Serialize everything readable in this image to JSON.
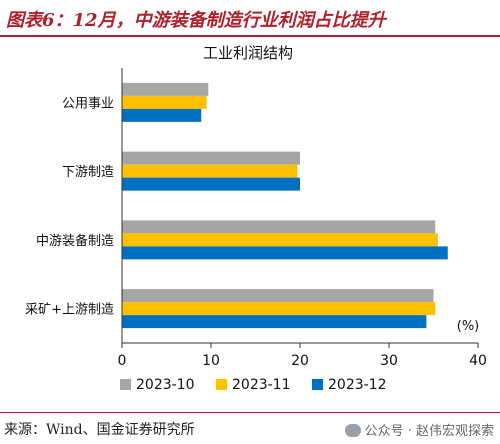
{
  "header": {
    "title": "图表6：12月，中游装备制造行业利润占比提升"
  },
  "footer": {
    "source": "来源：Wind、国金证券研究所",
    "watermark": "公众号 · 赵伟宏观探索"
  },
  "colors": {
    "brand_red": "#b0202a",
    "series": [
      "#a6a6a6",
      "#ffc000",
      "#0070c0"
    ]
  },
  "chart_data": {
    "type": "bar",
    "orientation": "horizontal",
    "title": "工业利润结构",
    "unit_label": "(%)",
    "categories": [
      "公用事业",
      "下游制造",
      "中游装备制造",
      "采矿+上游制造"
    ],
    "series": [
      {
        "name": "2023-10",
        "values": [
          9.7,
          20.0,
          35.2,
          35.0
        ]
      },
      {
        "name": "2023-11",
        "values": [
          9.5,
          19.7,
          35.5,
          35.2
        ]
      },
      {
        "name": "2023-12",
        "values": [
          8.9,
          20.0,
          36.6,
          34.2
        ]
      }
    ],
    "xlim": [
      0,
      40
    ],
    "xticks": [
      0,
      10,
      20,
      30,
      40
    ],
    "grid": false,
    "legend_position": "bottom"
  }
}
